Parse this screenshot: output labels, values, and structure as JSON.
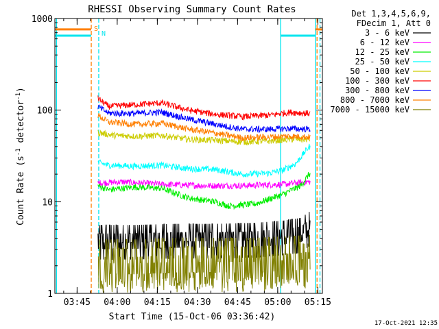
{
  "chart_data": {
    "type": "line",
    "title": "RHESSI Observing Summary Count Rates",
    "xlabel": "Start Time (15-Oct-06 03:36:42)",
    "ylabel_parts": [
      "Count Rate (s",
      "-1",
      " detector",
      "-1",
      ")"
    ],
    "y_scale": "log",
    "ylim": [
      1,
      1000
    ],
    "y_ticks": [
      {
        "v": 1,
        "label": "1"
      },
      {
        "v": 10,
        "label": "10"
      },
      {
        "v": 100,
        "label": "100"
      },
      {
        "v": 1000,
        "label": "1000"
      }
    ],
    "x_unit": "minutes after 03:36:42",
    "xlim": [
      0,
      100
    ],
    "x_ticks": [
      {
        "t": 8.3,
        "label": "03:45"
      },
      {
        "t": 23.3,
        "label": "04:00"
      },
      {
        "t": 38.3,
        "label": "04:15"
      },
      {
        "t": 53.3,
        "label": "04:30"
      },
      {
        "t": 68.3,
        "label": "04:45"
      },
      {
        "t": 83.3,
        "label": "05:00"
      },
      {
        "t": 98.3,
        "label": "05:15"
      }
    ],
    "legend_header": [
      "Det 1,3,4,5,6,9,",
      "FDecim 1, Att 0"
    ],
    "markers": [
      {
        "label": "S",
        "color": "#ff7f00",
        "style": "dashed",
        "t": [
          13.6,
          98.0
        ]
      },
      {
        "label": "N",
        "color": "#00e5ee",
        "style": "dashed",
        "t": [
          16.4,
          99.1
        ]
      }
    ],
    "flags": [
      {
        "name": "S",
        "color": "#ff7f00",
        "level": 760,
        "segments": [
          [
            0,
            13.6
          ],
          [
            97.4,
            100
          ]
        ]
      },
      {
        "name": "N",
        "color": "#00e5ee",
        "level": 650,
        "segments": [
          [
            0,
            13.6
          ],
          [
            84.4,
            97.4
          ]
        ]
      }
    ],
    "vertical_lines": [
      {
        "color": "#00e5ee",
        "t": [
          0.6,
          84.4,
          97.4
        ]
      }
    ],
    "data_span": [
      16.1,
      95.4
    ],
    "series": [
      {
        "name": "3 - 6 keV",
        "color": "#000000",
        "x": [
          16,
          30,
          45,
          60,
          75,
          85,
          92,
          95
        ],
        "y": [
          3.6,
          3.6,
          3.7,
          3.7,
          3.8,
          4,
          4.3,
          5
        ]
      },
      {
        "name": "6 - 12 keV",
        "color": "#ff00ff",
        "x": [
          16,
          25,
          40,
          55,
          70,
          85,
          95
        ],
        "y": [
          16,
          16.5,
          15.5,
          15,
          15,
          15.5,
          16.5
        ]
      },
      {
        "name": "12 - 25 keV",
        "color": "#00ee00",
        "x": [
          16,
          20,
          30,
          40,
          50,
          60,
          65,
          75,
          85,
          92,
          95
        ],
        "y": [
          15,
          13.5,
          14.5,
          14,
          11,
          10,
          9,
          9.5,
          12,
          15,
          20
        ]
      },
      {
        "name": "25 - 50 keV",
        "color": "#00ffff",
        "x": [
          16,
          20,
          30,
          40,
          50,
          60,
          70,
          80,
          85,
          90,
          95
        ],
        "y": [
          27,
          25,
          24.5,
          25,
          23,
          22.5,
          20,
          20.5,
          22,
          26,
          40
        ]
      },
      {
        "name": "50 - 100 keV",
        "color": "#cccc00",
        "x": [
          16,
          22,
          30,
          40,
          50,
          60,
          70,
          80,
          88,
          95
        ],
        "y": [
          57,
          53,
          52,
          53,
          48,
          47,
          45,
          46,
          48,
          48
        ]
      },
      {
        "name": "100 - 300 keV",
        "color": "#ff0000",
        "x": [
          16,
          20,
          30,
          40,
          50,
          60,
          70,
          80,
          88,
          95
        ],
        "y": [
          135,
          110,
          115,
          120,
          100,
          90,
          85,
          88,
          95,
          92
        ]
      },
      {
        "name": "300 - 800 keV",
        "color": "#0000ff",
        "x": [
          16,
          20,
          30,
          40,
          50,
          60,
          70,
          80,
          88,
          95
        ],
        "y": [
          110,
          93,
          92,
          95,
          80,
          70,
          62,
          62,
          63,
          62
        ]
      },
      {
        "name": "800 - 7000 keV",
        "color": "#ff7f00",
        "x": [
          16,
          20,
          30,
          40,
          50,
          60,
          70,
          80,
          88,
          95
        ],
        "y": [
          88,
          74,
          70,
          72,
          62,
          56,
          50,
          51,
          52,
          51
        ]
      },
      {
        "name": "7000 - 15000 keV",
        "color": "#808000",
        "x": [
          16,
          30,
          45,
          60,
          75,
          85,
          95
        ],
        "y": [
          2.5,
          2.5,
          2.6,
          2.6,
          2.6,
          2.7,
          2.8
        ]
      }
    ]
  },
  "timestamp": "17-Oct-2021 12:35"
}
